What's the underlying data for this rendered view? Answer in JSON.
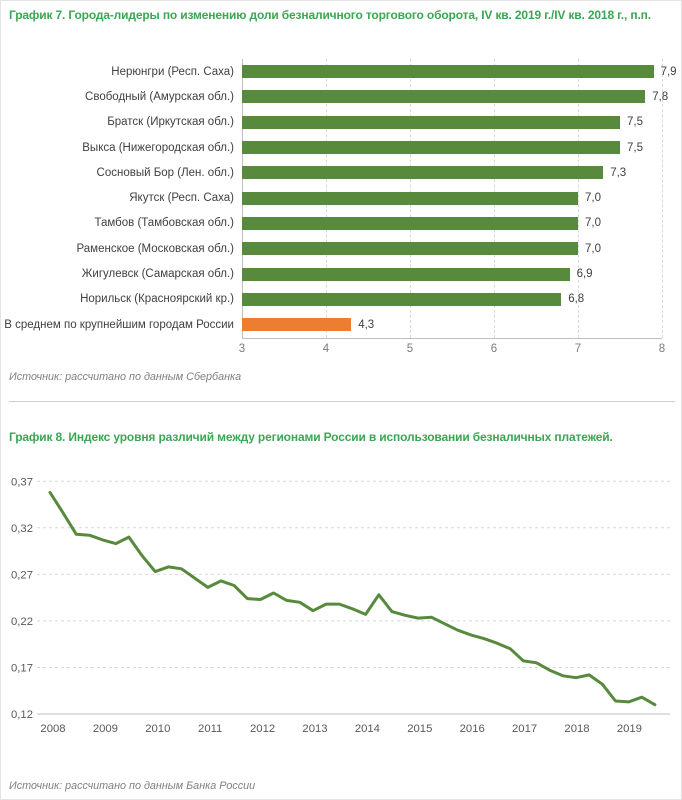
{
  "colors": {
    "title_green": "#3ba653",
    "series_green": "#578a3c",
    "highlight_orange": "#ed7d31",
    "value_label": "#404040",
    "tick_label": "#7a7a7a",
    "axis_label": "#595959",
    "gridline": "#d9d9d9",
    "axis_line": "#bfbfbf",
    "source_text": "#808080"
  },
  "chart_data": [
    {
      "type": "bar",
      "orientation": "horizontal",
      "title": "График 7. Города-лидеры по изменению доли безналичного торгового оборота, IV кв. 2019 г./IV кв. 2018 г., п.п.",
      "categories": [
        "Нерюнгри (Респ. Саха)",
        "Свободный (Амурская обл.)",
        "Братск (Иркутская обл.)",
        "Выкса (Нижегородская обл.)",
        "Сосновый Бор (Лен. обл.)",
        "Якутск (Респ. Саха)",
        "Тамбов (Тамбовская обл.)",
        "Раменское (Московская обл.)",
        "Жигулевск (Самарская обл.)",
        "Норильск (Красноярский кр.)",
        "В среднем по крупнейшим городам России"
      ],
      "values": [
        7.9,
        7.8,
        7.5,
        7.5,
        7.3,
        7.0,
        7.0,
        7.0,
        6.9,
        6.8,
        4.3
      ],
      "value_labels": [
        "7,9",
        "7,8",
        "7,5",
        "7,5",
        "7,3",
        "7,0",
        "7,0",
        "7,0",
        "6,9",
        "6,8",
        "4,3"
      ],
      "highlight_index": 10,
      "xlim": [
        3,
        8
      ],
      "xticks": [
        "3",
        "4",
        "5",
        "6",
        "7",
        "8"
      ],
      "grid": "vertical-dashed",
      "legend": false,
      "source": "Источник: рассчитано по данным Сбербанка"
    },
    {
      "type": "line",
      "title": "График 8. Индекс уровня различий между регионами России в использовании безналичных платежей.",
      "x_first": "2008 Q1",
      "x_last": "2019 Q3",
      "x_step": "quarter",
      "values": [
        0.358,
        0.336,
        0.313,
        0.312,
        0.307,
        0.303,
        0.31,
        0.29,
        0.273,
        0.278,
        0.276,
        0.266,
        0.256,
        0.263,
        0.258,
        0.244,
        0.243,
        0.25,
        0.242,
        0.24,
        0.231,
        0.238,
        0.238,
        0.233,
        0.227,
        0.248,
        0.23,
        0.226,
        0.223,
        0.224,
        0.217,
        0.21,
        0.205,
        0.201,
        0.196,
        0.19,
        0.177,
        0.175,
        0.167,
        0.161,
        0.159,
        0.162,
        0.152,
        0.134,
        0.133,
        0.138,
        0.13
      ],
      "ylim": [
        0.12,
        0.38
      ],
      "yticks": [
        0.37,
        0.32,
        0.27,
        0.22,
        0.17,
        0.12
      ],
      "ytick_labels": [
        "0,37",
        "0,32",
        "0,27",
        "0,22",
        "0,17",
        "0,12"
      ],
      "xtick_labels": [
        "2008",
        "2009",
        "2010",
        "2011",
        "2012",
        "2013",
        "2014",
        "2015",
        "2016",
        "2017",
        "2018",
        "2019"
      ],
      "grid": "horizontal-dashed",
      "legend": false,
      "source": "Источник: рассчитано по данным Банка России"
    }
  ]
}
